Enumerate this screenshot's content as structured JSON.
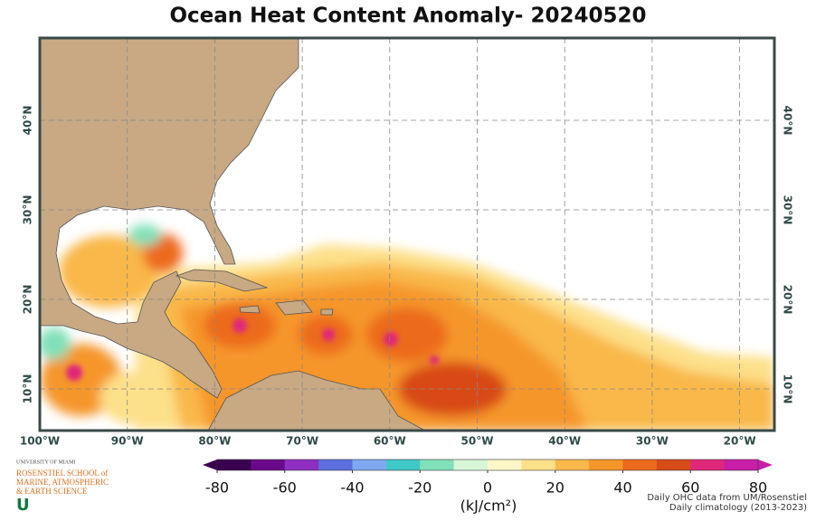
{
  "title": "Ocean Heat Content Anomaly- 20240520",
  "map": {
    "longitude_labels": [
      "100°W",
      "90°W",
      "80°W",
      "70°W",
      "60°W",
      "50°W",
      "40°W",
      "30°W",
      "20°W"
    ],
    "latitude_labels": [
      "10°N",
      "20°N",
      "30°N",
      "40°N"
    ],
    "land_color": "#c8a984"
  },
  "colorbar": {
    "lim": [
      -80,
      80
    ],
    "ticks": [
      -80,
      -60,
      -40,
      -20,
      0,
      20,
      40,
      60,
      80
    ],
    "colors": [
      "#3a0050",
      "#6a0a8a",
      "#8e2fc2",
      "#5a6fe0",
      "#7fa8f0",
      "#40c8c8",
      "#80e0b8",
      "#d8f5d8",
      "#fff7c8",
      "#fde08a",
      "#f9b84a",
      "#f5962a",
      "#ec6a1c",
      "#d84a18",
      "#e0287a",
      "#c81ea8"
    ],
    "unit_label": "(kJ/cm²)"
  },
  "credits": [
    "Daily OHC data from UM/Rosenstiel",
    "Daily climatology (2013-2023)"
  ],
  "logo": {
    "lines": [
      "UNIVERSITY OF MIAMI",
      "ROSENSTIEL SCHOOL of",
      "MARINE, ATMOSPHERIC",
      "& EARTH SCIENCE"
    ],
    "mark": "U"
  }
}
